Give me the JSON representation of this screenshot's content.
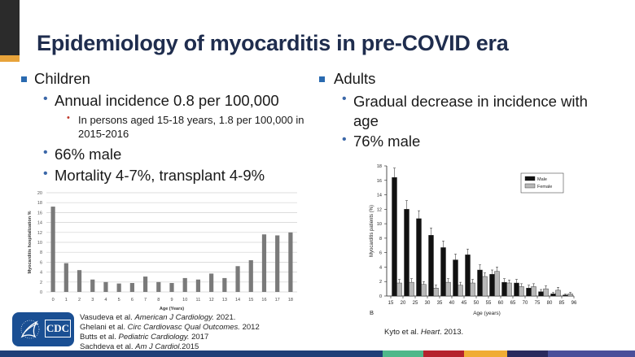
{
  "slide": {
    "title": "Epidemiology of myocarditis in pre-COVID era",
    "left": {
      "heading": "Children",
      "bullets": [
        "Annual incidence 0.8 per 100,000",
        "66% male",
        "Mortality 4-7%, transplant 4-9%"
      ],
      "sub_bullet": "In persons aged 15-18 years, 1.8 per 100,000 in 2015-2016"
    },
    "right": {
      "heading": "Adults",
      "bullets": [
        "Gradual decrease in incidence with age",
        "76% male"
      ]
    },
    "references_left": [
      {
        "authors": "Vasudeva et al. ",
        "journal": "American J Cardiology.",
        "year": " 2021."
      },
      {
        "authors": "Ghelani et al. ",
        "journal": "Circ Cardiovasc Qual Outcomes.",
        "year": " 2012"
      },
      {
        "authors": "Butts et al. ",
        "journal": "Pediatric Cardiology.",
        "year": " 2017"
      },
      {
        "authors": "Sachdeva et al. ",
        "journal": "Am J Cardiol.",
        "year": "2015"
      }
    ],
    "reference_right": {
      "authors": "Kyto et al. ",
      "journal": "Heart",
      "year": ". 2013."
    },
    "logo_text": "CDC",
    "footer_colors": [
      "#1f3f78",
      "#4fb88a",
      "#b5222c",
      "#f0ac34",
      "#2a2a5e",
      "#4a4f9a"
    ]
  },
  "chart_data": [
    {
      "type": "bar",
      "title": "",
      "xlabel": "Age (Years)",
      "ylabel": "Myocarditis hospitalization %",
      "ylim": [
        0,
        20
      ],
      "yticks": [
        0,
        2,
        4,
        6,
        8,
        10,
        12,
        14,
        16,
        18,
        20
      ],
      "grid": true,
      "categories": [
        "0",
        "1",
        "2",
        "3",
        "4",
        "5",
        "6",
        "7",
        "8",
        "9",
        "10",
        "11",
        "12",
        "13",
        "14",
        "15",
        "16",
        "17",
        "18"
      ],
      "values": [
        17.2,
        5.8,
        4.4,
        2.5,
        2.0,
        1.7,
        1.8,
        3.1,
        2.0,
        1.8,
        2.8,
        2.5,
        3.7,
        2.8,
        5.2,
        6.4,
        11.6,
        11.4,
        12.0
      ],
      "color": "#7a7a7a"
    },
    {
      "type": "bar",
      "title": "",
      "panel_label": "B",
      "xlabel": "Age (years)",
      "ylabel": "Myocarditis patients (%)",
      "ylim": [
        0,
        18
      ],
      "yticks": [
        0,
        2,
        4,
        6,
        8,
        10,
        12,
        14,
        16,
        18
      ],
      "xticks": [
        "15",
        "20",
        "25",
        "30",
        "35",
        "40",
        "45",
        "50",
        "55",
        "60",
        "65",
        "70",
        "75",
        "80",
        "85",
        "96"
      ],
      "grid": false,
      "legend_position": "top-right",
      "series": [
        {
          "name": "Male",
          "color": "#111111",
          "values": [
            16.4,
            12.0,
            10.7,
            8.4,
            6.7,
            5.0,
            5.7,
            3.6,
            3.0,
            1.9,
            1.8,
            1.1,
            0.6,
            0.3,
            0.15
          ],
          "errors": [
            1.3,
            1.2,
            1.1,
            1.0,
            0.9,
            0.8,
            0.8,
            0.7,
            0.6,
            0.5,
            0.5,
            0.4,
            0.3,
            0.2,
            0.1
          ]
        },
        {
          "name": "Female",
          "color": "#b8b8b8",
          "values": [
            1.8,
            1.9,
            1.6,
            1.1,
            1.9,
            1.5,
            1.8,
            2.7,
            3.4,
            1.8,
            1.3,
            1.3,
            1.0,
            0.8,
            0.3
          ],
          "errors": [
            0.5,
            0.5,
            0.4,
            0.4,
            0.5,
            0.4,
            0.5,
            0.5,
            0.6,
            0.4,
            0.4,
            0.4,
            0.4,
            0.4,
            0.2
          ]
        }
      ]
    }
  ]
}
